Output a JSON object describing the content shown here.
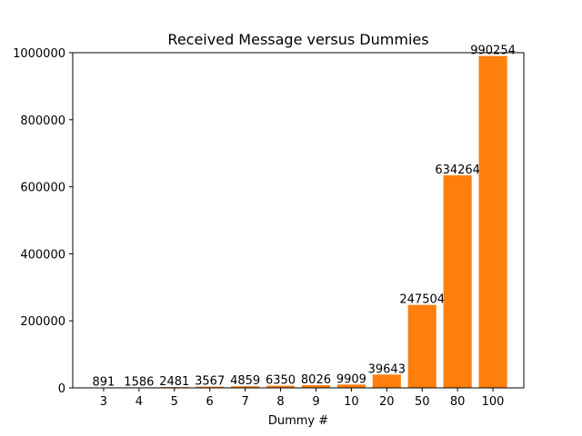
{
  "chart_data": {
    "type": "bar",
    "title": "Received Message versus Dummies",
    "xlabel": "Dummy #",
    "ylabel": "",
    "categories": [
      "3",
      "4",
      "5",
      "6",
      "7",
      "8",
      "9",
      "10",
      "20",
      "50",
      "80",
      "100"
    ],
    "values": [
      891,
      1586,
      2481,
      3567,
      4859,
      6350,
      8026,
      9909,
      39643,
      247504,
      634264,
      990254
    ],
    "data_labels": [
      "891",
      "1586",
      "2481",
      "3567",
      "4859",
      "6350",
      "8026",
      "9909",
      "39643",
      "247504",
      "634264",
      "990254"
    ],
    "ylim": [
      0,
      1000000
    ],
    "yticks": [
      0,
      200000,
      400000,
      600000,
      800000,
      1000000
    ],
    "ytick_labels": [
      "0",
      "200000",
      "400000",
      "600000",
      "800000",
      "1000000"
    ],
    "bar_color": "#ff7f0e",
    "grid": false,
    "legend": "none"
  }
}
